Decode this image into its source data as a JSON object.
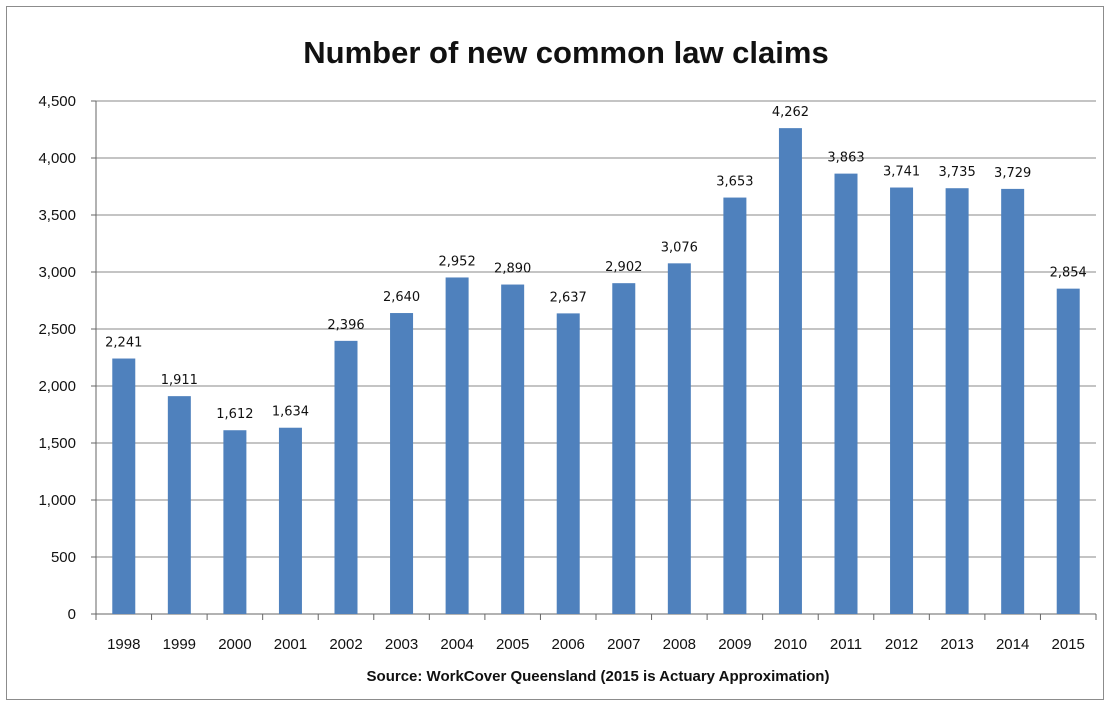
{
  "chart_data": {
    "type": "bar",
    "title": "Number of new common law claims",
    "xlabel": "Source: WorkCover Queensland  (2015 is Actuary Approximation)",
    "ylabel": "",
    "categories": [
      "1998",
      "1999",
      "2000",
      "2001",
      "2002",
      "2003",
      "2004",
      "2005",
      "2006",
      "2007",
      "2008",
      "2009",
      "2010",
      "2011",
      "2012",
      "2013",
      "2014",
      "2015"
    ],
    "values": [
      2241,
      1911,
      1612,
      1634,
      2396,
      2640,
      2952,
      2890,
      2637,
      2902,
      3076,
      3653,
      4262,
      3863,
      3741,
      3735,
      3729,
      2854
    ],
    "value_labels": [
      "2,241",
      "1,911",
      "1,612",
      "1,634",
      "2,396",
      "2,640",
      "2,952",
      "2,890",
      "2,637",
      "2,902",
      "3,076",
      "3,653",
      "4,262",
      "3,863",
      "3,741",
      "3,735",
      "3,729",
      "2,854"
    ],
    "ylim": [
      0,
      4500
    ],
    "yticks": [
      0,
      500,
      1000,
      1500,
      2000,
      2500,
      3000,
      3500,
      4000,
      4500
    ],
    "ytick_labels": [
      "0",
      "500",
      "1,000",
      "1,500",
      "2,000",
      "2,500",
      "3,000",
      "3,500",
      "4,000",
      "4,500"
    ],
    "grid": true,
    "legend": "none",
    "bar_color": "#4f81bd",
    "grid_color": "#888888"
  }
}
